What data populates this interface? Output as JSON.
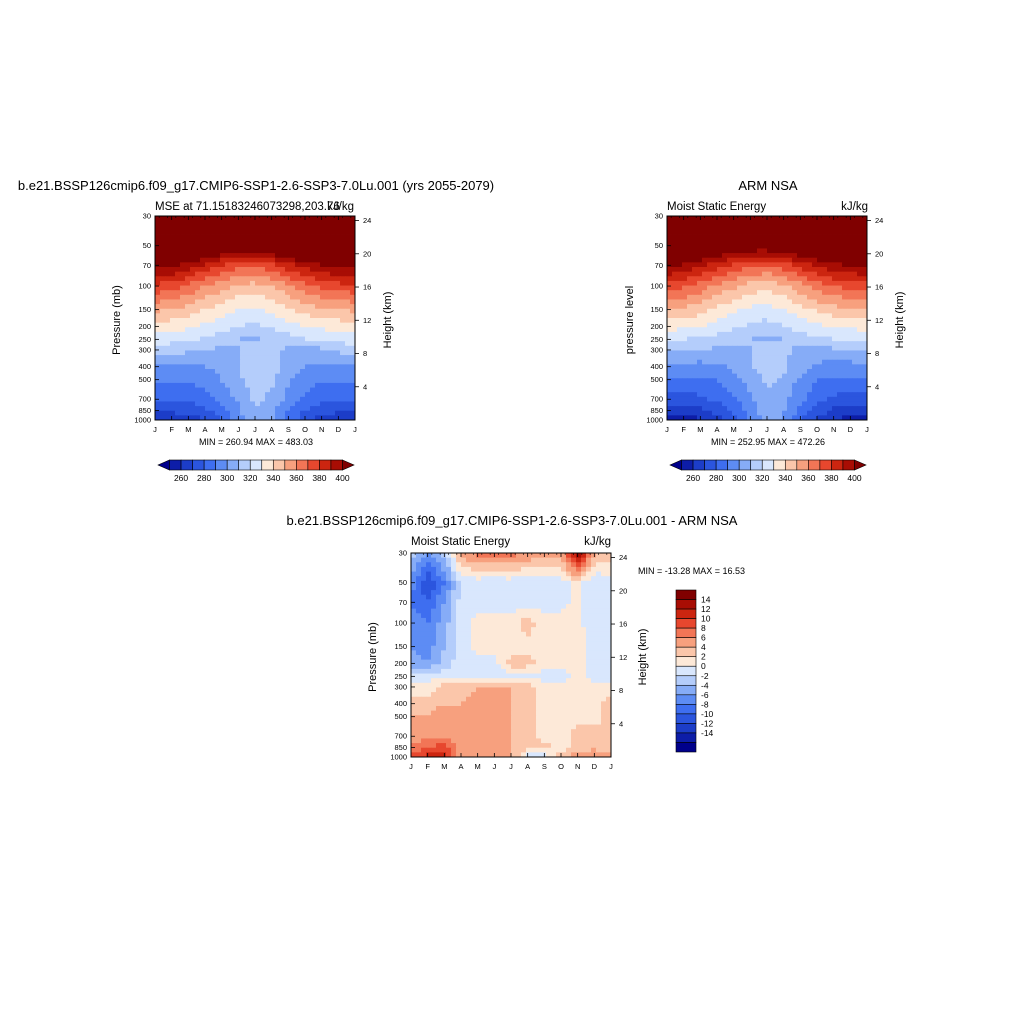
{
  "chart_data": [
    {
      "type": "heatmap",
      "title": "b.e21.BSSP126cmip6.f09_g17.CMIP6-SSP1-2.6-SSP3-7.0Lu.001 (yrs 2055-2079)",
      "left_label": "MSE at 71.15183246073298,203.76",
      "right_label": "kJ/kg",
      "ylabel": "Pressure (mb)",
      "y2label": "Height (km)",
      "x_ticks": [
        "J",
        "F",
        "M",
        "A",
        "M",
        "J",
        "J",
        "A",
        "S",
        "O",
        "N",
        "D",
        "J"
      ],
      "p_ticks": [
        30,
        50,
        70,
        100,
        150,
        200,
        250,
        300,
        400,
        500,
        700,
        850,
        1000
      ],
      "height_ticks": [
        4,
        8,
        12,
        16,
        20,
        24
      ],
      "min_max_text": "MIN = 260.94 MAX = 483.03",
      "colorbar_ticks": [
        260,
        280,
        300,
        320,
        340,
        360,
        380,
        400
      ],
      "levels": [
        250,
        260,
        270,
        280,
        290,
        300,
        310,
        320,
        330,
        340,
        350,
        360,
        370,
        380,
        390,
        400,
        410
      ],
      "field": {
        "description": "monthly-mean MSE vs pressure (kJ/kg), rows = pressure levels top to bottom, cols = J..J",
        "pressure": [
          30,
          50,
          70,
          100,
          150,
          200,
          250,
          300,
          400,
          500,
          700,
          850,
          1000
        ],
        "values": [
          [
            480,
            478,
            476,
            474,
            472,
            470,
            470,
            472,
            474,
            476,
            478,
            480,
            480
          ],
          [
            440,
            436,
            430,
            424,
            418,
            414,
            414,
            418,
            424,
            430,
            436,
            440,
            440
          ],
          [
            405,
            402,
            396,
            388,
            380,
            374,
            372,
            378,
            386,
            394,
            400,
            404,
            405
          ],
          [
            378,
            374,
            368,
            360,
            354,
            348,
            346,
            350,
            358,
            366,
            372,
            376,
            378
          ],
          [
            352,
            350,
            346,
            340,
            334,
            330,
            328,
            332,
            338,
            344,
            348,
            350,
            352
          ],
          [
            336,
            334,
            332,
            328,
            324,
            320,
            318,
            322,
            326,
            330,
            332,
            334,
            336
          ],
          [
            326,
            324,
            322,
            318,
            314,
            310,
            308,
            312,
            316,
            320,
            322,
            324,
            326
          ],
          [
            314,
            314,
            312,
            310,
            308,
            310,
            316,
            312,
            308,
            306,
            308,
            312,
            314
          ],
          [
            298,
            298,
            298,
            300,
            304,
            310,
            318,
            314,
            306,
            300,
            298,
            298,
            298
          ],
          [
            292,
            292,
            292,
            294,
            300,
            308,
            316,
            312,
            302,
            294,
            292,
            292,
            292
          ],
          [
            280,
            280,
            282,
            286,
            292,
            302,
            312,
            308,
            296,
            288,
            282,
            280,
            280
          ],
          [
            272,
            272,
            274,
            278,
            286,
            298,
            310,
            304,
            290,
            280,
            274,
            272,
            272
          ],
          [
            262,
            262,
            264,
            270,
            280,
            296,
            310,
            302,
            286,
            274,
            266,
            262,
            262
          ]
        ]
      }
    },
    {
      "type": "heatmap",
      "title": "ARM NSA",
      "left_label": "Moist Static Energy",
      "right_label": "kJ/kg",
      "ylabel": "pressure level",
      "y2label": "Height (km)",
      "x_ticks": [
        "J",
        "F",
        "M",
        "A",
        "M",
        "J",
        "J",
        "A",
        "S",
        "O",
        "N",
        "D",
        "J"
      ],
      "p_ticks": [
        30,
        50,
        70,
        100,
        150,
        200,
        250,
        300,
        400,
        500,
        700,
        850,
        1000
      ],
      "height_ticks": [
        4,
        8,
        12,
        16,
        20,
        24
      ],
      "min_max_text": "MIN = 252.95 MAX = 472.26",
      "colorbar_ticks": [
        260,
        280,
        300,
        320,
        340,
        360,
        380,
        400
      ],
      "levels": [
        250,
        260,
        270,
        280,
        290,
        300,
        310,
        320,
        330,
        340,
        350,
        360,
        370,
        380,
        390,
        400,
        410
      ],
      "field": {
        "description": "monthly-mean MSE vs pressure (kJ/kg), ARM NSA observations",
        "pressure": [
          30,
          50,
          70,
          100,
          150,
          200,
          250,
          300,
          400,
          500,
          700,
          850,
          1000
        ],
        "values": [
          [
            470,
            468,
            466,
            464,
            462,
            460,
            460,
            462,
            464,
            466,
            468,
            470,
            470
          ],
          [
            436,
            432,
            426,
            420,
            414,
            410,
            410,
            414,
            420,
            426,
            432,
            436,
            436
          ],
          [
            402,
            398,
            392,
            384,
            378,
            372,
            370,
            376,
            384,
            392,
            398,
            400,
            402
          ],
          [
            376,
            372,
            366,
            358,
            352,
            346,
            344,
            348,
            356,
            364,
            370,
            374,
            376
          ],
          [
            350,
            348,
            344,
            338,
            332,
            328,
            326,
            330,
            336,
            342,
            346,
            348,
            350
          ],
          [
            334,
            332,
            330,
            326,
            322,
            318,
            316,
            320,
            324,
            328,
            330,
            332,
            334
          ],
          [
            322,
            320,
            318,
            316,
            312,
            310,
            308,
            310,
            314,
            318,
            320,
            322,
            322
          ],
          [
            312,
            312,
            310,
            308,
            308,
            310,
            314,
            312,
            308,
            306,
            308,
            310,
            312
          ],
          [
            296,
            296,
            296,
            298,
            302,
            308,
            316,
            312,
            304,
            298,
            296,
            296,
            296
          ],
          [
            288,
            288,
            288,
            290,
            296,
            304,
            312,
            308,
            298,
            290,
            288,
            288,
            288
          ],
          [
            276,
            276,
            278,
            282,
            288,
            298,
            308,
            304,
            292,
            284,
            278,
            276,
            276
          ],
          [
            266,
            266,
            268,
            274,
            282,
            294,
            306,
            300,
            286,
            276,
            268,
            266,
            266
          ],
          [
            256,
            256,
            258,
            264,
            276,
            292,
            306,
            298,
            282,
            268,
            260,
            256,
            256
          ]
        ]
      }
    },
    {
      "type": "heatmap",
      "title": "b.e21.BSSP126cmip6.f09_g17.CMIP6-SSP1-2.6-SSP3-7.0Lu.001 - ARM NSA",
      "left_label": "Moist Static Energy",
      "right_label": "kJ/kg",
      "ylabel": "Pressure (mb)",
      "y2label": "Height (km)",
      "x_ticks": [
        "J",
        "F",
        "M",
        "A",
        "M",
        "J",
        "J",
        "A",
        "S",
        "O",
        "N",
        "D",
        "J"
      ],
      "p_ticks": [
        30,
        50,
        70,
        100,
        150,
        200,
        250,
        300,
        400,
        500,
        700,
        850,
        1000
      ],
      "height_ticks": [
        4,
        8,
        12,
        16,
        20,
        24
      ],
      "min_max_text": "MIN = -13.28 MAX =  16.53",
      "colorbar_ticks": [
        14,
        12,
        10,
        8,
        6,
        4,
        2,
        0,
        -2,
        -4,
        -6,
        -8,
        -10,
        -12,
        -14
      ],
      "levels": [
        -16,
        -14,
        -12,
        -10,
        -8,
        -6,
        -4,
        -2,
        0,
        2,
        4,
        6,
        8,
        10,
        12,
        14,
        16
      ],
      "field": {
        "description": "difference model - ARM NSA (kJ/kg)",
        "pressure": [
          30,
          50,
          70,
          100,
          150,
          200,
          250,
          300,
          400,
          500,
          700,
          850,
          1000
        ],
        "values": [
          [
            -3,
            -6,
            -3,
            5,
            7,
            7,
            7,
            6,
            5,
            5,
            15,
            4,
            3
          ],
          [
            -7,
            -12,
            -8,
            -2,
            -1,
            -2,
            -1,
            -2,
            -1,
            -1,
            1,
            -2,
            -1
          ],
          [
            -8,
            -10,
            -6,
            -1,
            -1,
            -1,
            -1,
            -1,
            -1,
            -1,
            1,
            -2,
            -1
          ],
          [
            -7,
            -8,
            -5,
            -1,
            1,
            1,
            1,
            3,
            1,
            1,
            1,
            -2,
            -1
          ],
          [
            -6,
            -7,
            -4,
            -1,
            1,
            1,
            1,
            1,
            1,
            1,
            1,
            -1,
            -1
          ],
          [
            -5,
            -6,
            -3,
            -1,
            -1,
            -1,
            3,
            3,
            1,
            1,
            1,
            -1,
            -1
          ],
          [
            -1,
            -1,
            -1,
            -1,
            -1,
            -1,
            -1,
            -1,
            -1,
            -1,
            1,
            -1,
            -1
          ],
          [
            1,
            1,
            3,
            3,
            4,
            5,
            4,
            3,
            1,
            1,
            1,
            1,
            1
          ],
          [
            3,
            3,
            4,
            4,
            5,
            5,
            4,
            3,
            1,
            1,
            1,
            1,
            3
          ],
          [
            4,
            4,
            5,
            4,
            5,
            5,
            4,
            3,
            1,
            1,
            1,
            1,
            3
          ],
          [
            5,
            5,
            6,
            5,
            4,
            5,
            4,
            3,
            1,
            1,
            3,
            3,
            3
          ],
          [
            6,
            8,
            9,
            5,
            4,
            5,
            4,
            3,
            3,
            1,
            3,
            3,
            3
          ],
          [
            9,
            11,
            12,
            5,
            6,
            5,
            4,
            -1,
            -1,
            3,
            5,
            7,
            5
          ]
        ]
      }
    }
  ]
}
